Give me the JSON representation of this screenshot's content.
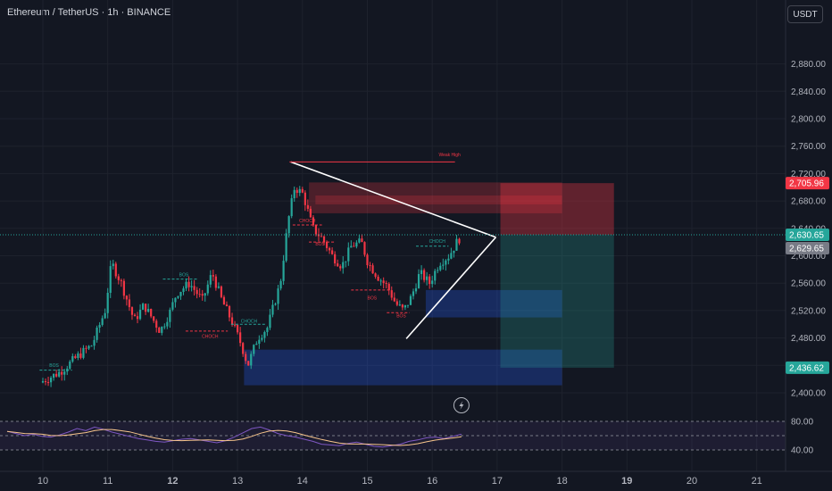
{
  "header": {
    "title": "Ethereum / TetherUS · 1h · BINANCE",
    "currency": "USDT"
  },
  "colors": {
    "up": "#26a69a",
    "down": "#f23645",
    "rsi": "#7e57c2",
    "rsi_ma": "#f7c58c"
  },
  "chart_data": {
    "type": "candlestick",
    "title": "Ethereum / TetherUS · 1h · BINANCE",
    "x_ticks": [
      "10",
      "11",
      "12",
      "13",
      "14",
      "15",
      "16",
      "17",
      "18",
      "19",
      "20",
      "21"
    ],
    "bold_x_ticks": [
      "12",
      "19"
    ],
    "y_ticks": [
      "2,400.00",
      "2,440.00",
      "2,480.00",
      "2,520.00",
      "2,560.00",
      "2,600.00",
      "2,640.00",
      "2,680.00",
      "2,720.00",
      "2,760.00",
      "2,800.00",
      "2,840.00",
      "2,880.00"
    ],
    "ylim": [
      2400,
      2900
    ],
    "price_path": [
      [
        10.0,
        2415
      ],
      [
        10.3,
        2430
      ],
      [
        10.6,
        2455
      ],
      [
        10.8,
        2470
      ],
      [
        11.0,
        2520
      ],
      [
        11.1,
        2590
      ],
      [
        11.25,
        2560
      ],
      [
        11.45,
        2505
      ],
      [
        11.6,
        2528
      ],
      [
        11.85,
        2490
      ],
      [
        12.0,
        2518
      ],
      [
        12.1,
        2545
      ],
      [
        12.3,
        2560
      ],
      [
        12.5,
        2535
      ],
      [
        12.65,
        2575
      ],
      [
        12.8,
        2535
      ],
      [
        12.95,
        2505
      ],
      [
        13.1,
        2470
      ],
      [
        13.2,
        2440
      ],
      [
        13.35,
        2480
      ],
      [
        13.5,
        2495
      ],
      [
        13.7,
        2560
      ],
      [
        13.82,
        2650
      ],
      [
        13.92,
        2700
      ],
      [
        14.05,
        2690
      ],
      [
        14.2,
        2640
      ],
      [
        14.35,
        2625
      ],
      [
        14.5,
        2600
      ],
      [
        14.65,
        2585
      ],
      [
        14.8,
        2615
      ],
      [
        14.95,
        2620
      ],
      [
        15.05,
        2590
      ],
      [
        15.2,
        2570
      ],
      [
        15.35,
        2555
      ],
      [
        15.48,
        2530
      ],
      [
        15.6,
        2520
      ],
      [
        15.72,
        2540
      ],
      [
        15.85,
        2575
      ],
      [
        16.0,
        2560
      ],
      [
        16.15,
        2590
      ],
      [
        16.3,
        2600
      ],
      [
        16.45,
        2625
      ]
    ],
    "last_price": "2,629.65",
    "price_labels": [
      {
        "text": "2,705.96",
        "price": 2705.96,
        "color": "#f23645"
      },
      {
        "text": "2,630.65",
        "price": 2630.65,
        "color": "#26a69a"
      },
      {
        "text": "2,629.65",
        "price": 2629.65,
        "color": "#787b86"
      },
      {
        "text": "2,436.62",
        "price": 2436.62,
        "color": "#26a69a"
      }
    ],
    "annotations": [
      {
        "text": "Weak High",
        "x": 16.1,
        "y": 2745,
        "color": "#f23645"
      },
      {
        "text": "BOS",
        "x": 10.1,
        "y": 2438,
        "color": "#26a69a"
      },
      {
        "text": "BOS",
        "x": 12.1,
        "y": 2570,
        "color": "#26a69a"
      },
      {
        "text": "CHOCH",
        "x": 12.45,
        "y": 2480,
        "color": "#f23645"
      },
      {
        "text": "CHOCH",
        "x": 13.05,
        "y": 2502,
        "color": "#26a69a"
      },
      {
        "text": "CHOCH",
        "x": 13.95,
        "y": 2649,
        "color": "#f23645"
      },
      {
        "text": "BOS",
        "x": 14.2,
        "y": 2615,
        "color": "#f23645"
      },
      {
        "text": "BOS",
        "x": 15.0,
        "y": 2536,
        "color": "#f23645"
      },
      {
        "text": "BOS",
        "x": 15.45,
        "y": 2510,
        "color": "#f23645"
      },
      {
        "text": "CHOCH",
        "x": 15.95,
        "y": 2619,
        "color": "#26a69a"
      }
    ],
    "rsi_ticks": [
      "80.00",
      "40.00"
    ],
    "rsi_values": [
      66,
      63,
      60,
      62,
      59,
      58,
      61,
      65,
      70,
      67,
      72,
      69,
      65,
      62,
      59,
      56,
      54,
      52,
      51,
      53,
      55,
      56,
      54,
      52,
      50,
      53,
      58,
      64,
      70,
      72,
      68,
      63,
      60,
      58,
      55,
      52,
      48,
      47,
      46,
      49,
      51,
      48,
      45,
      44,
      46,
      48,
      52,
      54,
      57,
      58,
      56,
      59,
      62
    ]
  }
}
